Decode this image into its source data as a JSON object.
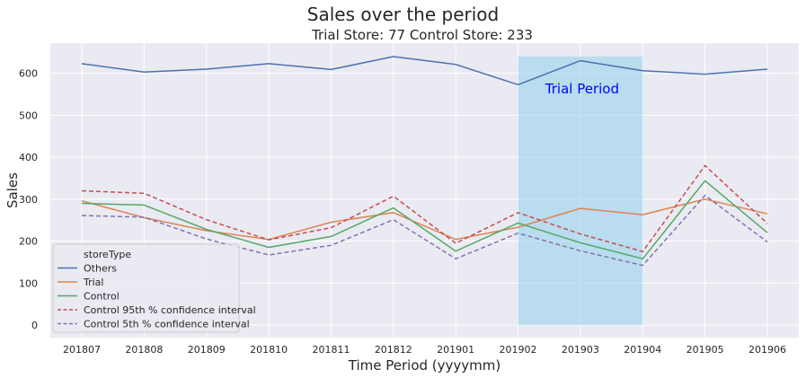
{
  "figure": {
    "suptitle": "Sales over the period"
  },
  "chart_data": {
    "type": "line",
    "title": "Trial Store: 77  Control Store: 233",
    "xlabel": "Time Period (yyyymm)",
    "ylabel": "Sales",
    "categories": [
      "201807",
      "201808",
      "201809",
      "201810",
      "201811",
      "201812",
      "201901",
      "201902",
      "201903",
      "201904",
      "201905",
      "201906"
    ],
    "yticks": [
      0,
      100,
      200,
      300,
      400,
      500,
      600
    ],
    "ylim": [
      -30,
      672
    ],
    "grid": true,
    "legend": {
      "title": "storeType",
      "placement": "lower-left"
    },
    "series": [
      {
        "name": "Others",
        "color": "#4c72b0",
        "dash": "solid",
        "values": [
          623,
          603,
          610,
          623,
          609,
          640,
          621,
          573,
          630,
          606,
          598,
          610
        ]
      },
      {
        "name": "Trial",
        "color": "#dd8452",
        "dash": "solid",
        "values": [
          296,
          256,
          225,
          204,
          245,
          268,
          204,
          233,
          278,
          263,
          300,
          265
        ]
      },
      {
        "name": "Control",
        "color": "#55a868",
        "dash": "solid",
        "values": [
          290,
          286,
          228,
          185,
          211,
          279,
          176,
          243,
          196,
          158,
          344,
          220
        ]
      },
      {
        "name": "Control 95th % confidence interval",
        "color": "#c44e52",
        "dash": "dashed",
        "values": [
          320,
          314,
          251,
          203,
          232,
          307,
          195,
          268,
          217,
          175,
          380,
          242
        ]
      },
      {
        "name": "Control 5th % confidence interval",
        "color": "#8172b2",
        "dash": "dashed",
        "values": [
          261,
          257,
          205,
          167,
          190,
          251,
          158,
          219,
          177,
          142,
          309,
          198
        ]
      }
    ],
    "highlight": {
      "label": "Trial Period",
      "x_start": "201902",
      "x_end": "201904",
      "y_bottom": 0,
      "y_top": 640,
      "fill_color": "#87ceeb",
      "label_color": "#0000ff"
    },
    "style": {
      "plot_bg": "#eaeaf2",
      "grid_color": "#ffffff",
      "text_color": "#262626"
    }
  }
}
